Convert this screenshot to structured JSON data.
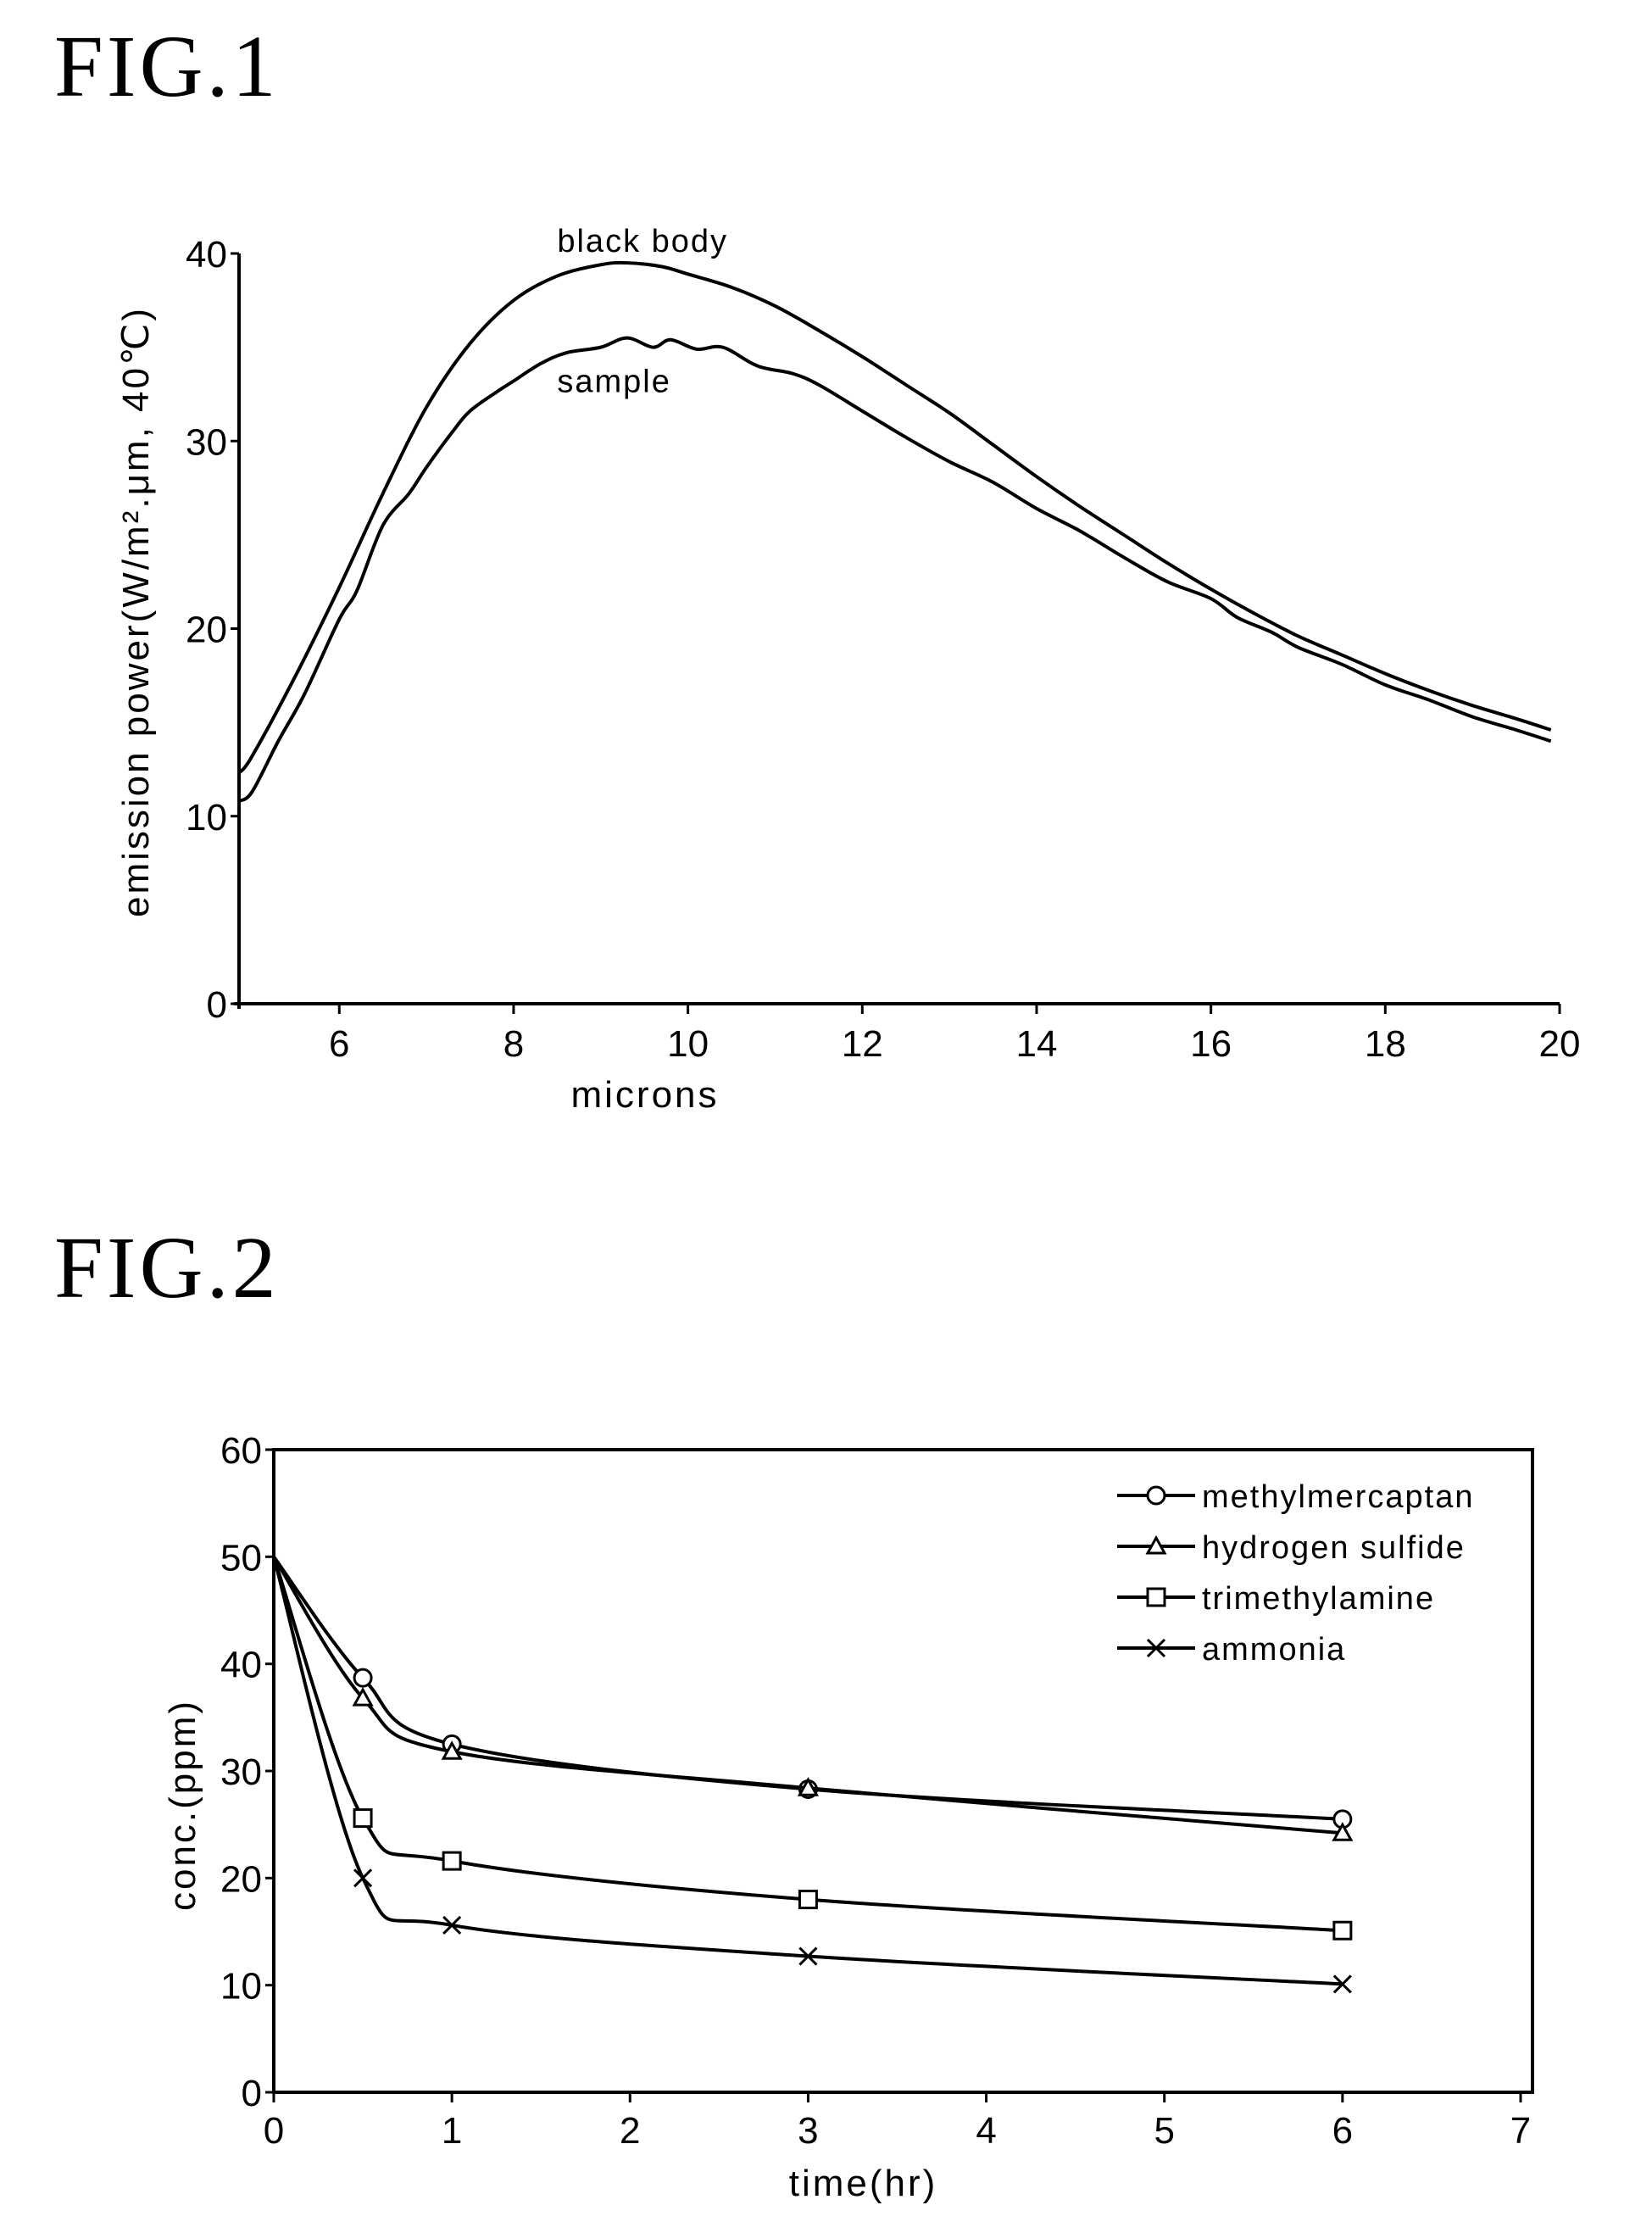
{
  "chart_data": [
    {
      "figure_label": "FIG.1",
      "type": "line",
      "xlabel": "microns",
      "ylabel": "emission power(W/m².μm, 40℃)",
      "xlim": [
        4.85,
        20
      ],
      "ylim": [
        0,
        40
      ],
      "xticks": [
        6,
        8,
        10,
        12,
        14,
        16,
        18,
        20
      ],
      "yticks": [
        0,
        10,
        20,
        30,
        40
      ],
      "grid": false,
      "series": [
        {
          "name": "black body",
          "x": [
            4.85,
            5,
            5.5,
            6,
            6.5,
            7,
            7.5,
            8,
            8.5,
            9,
            9.3,
            9.7,
            10,
            10.5,
            11,
            11.5,
            12,
            12.5,
            13,
            13.5,
            14,
            14.5,
            15,
            15.5,
            16,
            16.5,
            17,
            17.5,
            18,
            18.5,
            19,
            19.5,
            19.9
          ],
          "y": [
            12.3,
            13.2,
            17.5,
            22.2,
            27.2,
            31.8,
            35.2,
            37.5,
            38.8,
            39.4,
            39.5,
            39.3,
            38.9,
            38.2,
            37.2,
            35.9,
            34.5,
            33.0,
            31.5,
            29.8,
            28.1,
            26.5,
            25.0,
            23.5,
            22.1,
            20.8,
            19.6,
            18.6,
            17.6,
            16.7,
            15.9,
            15.2,
            14.6
          ]
        },
        {
          "name": "sample",
          "x": [
            4.85,
            5,
            5.3,
            5.6,
            6,
            6.2,
            6.5,
            6.8,
            7,
            7.3,
            7.5,
            7.8,
            8,
            8.3,
            8.6,
            9,
            9.3,
            9.6,
            9.8,
            10.1,
            10.4,
            10.8,
            11.2,
            11.5,
            12,
            12.5,
            13,
            13.5,
            14,
            14.5,
            15,
            15.5,
            16,
            16.3,
            16.7,
            17,
            17.5,
            18,
            18.5,
            19,
            19.5,
            19.9
          ],
          "y": [
            10.8,
            11.3,
            14.0,
            16.5,
            20.5,
            22.0,
            25.5,
            27.2,
            28.6,
            30.5,
            31.6,
            32.6,
            33.2,
            34.1,
            34.7,
            35.0,
            35.5,
            35.0,
            35.4,
            34.9,
            35.0,
            34.0,
            33.6,
            33.0,
            31.6,
            30.2,
            28.9,
            27.8,
            26.4,
            25.2,
            23.8,
            22.5,
            21.6,
            20.6,
            19.8,
            19.0,
            18.1,
            17.0,
            16.2,
            15.3,
            14.6,
            14.0
          ]
        }
      ],
      "annotations": [
        "black body",
        "sample"
      ]
    },
    {
      "figure_label": "FIG.2",
      "type": "line",
      "xlabel": "time(hr)",
      "ylabel": "conc.(ppm)",
      "xlim": [
        0,
        7
      ],
      "ylim": [
        0,
        60
      ],
      "xticks": [
        0,
        1,
        2,
        3,
        4,
        5,
        6,
        7
      ],
      "yticks": [
        0,
        10,
        20,
        30,
        40,
        50,
        60
      ],
      "grid": false,
      "legend_position": "top-right",
      "x": [
        0,
        0.5,
        1,
        3,
        6
      ],
      "series": [
        {
          "name": "methylmercaptan",
          "marker": "circle",
          "values": [
            50,
            38.7,
            32.5,
            28.3,
            25.5
          ]
        },
        {
          "name": "hydrogen sulfide",
          "marker": "triangle",
          "values": [
            50,
            36.8,
            31.8,
            28.4,
            24.2
          ]
        },
        {
          "name": "trimethylamine",
          "marker": "square",
          "values": [
            50,
            25.6,
            21.6,
            18.0,
            15.1
          ]
        },
        {
          "name": "ammonia",
          "marker": "x",
          "values": [
            50,
            20.0,
            15.6,
            12.7,
            10.1
          ]
        }
      ]
    }
  ]
}
